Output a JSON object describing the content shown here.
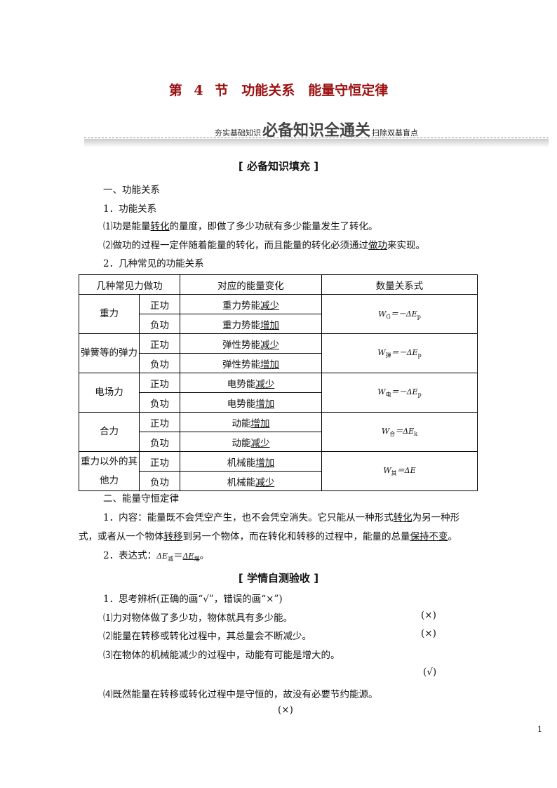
{
  "title": "第 4 节　功能关系　能量守恒定律",
  "banner": {
    "left": "夯实基础知识",
    "main": "必备知识全通关",
    "right": "扫除双基盲点"
  },
  "section1": "[ 必备知识填充 ]",
  "part1": "一、功能关系",
  "p1_head": "1．功能关系",
  "p1_1": [
    "⑴功是能量",
    "转化",
    "的量度，即做了多少功就有多少能量发生了转化。"
  ],
  "p1_2": [
    "⑵做功的过程一定伴随着能量的转化，而且能量的转化必须通过",
    "做功",
    "来实现。"
  ],
  "p2_head": "2．几种常见的功能关系",
  "table": {
    "headers": [
      "几种常见力做功",
      "对应的能量变化",
      "数量关系式"
    ],
    "groups": [
      {
        "force": "重力",
        "rows": [
          {
            "work": "正功",
            "change": [
              "重力势能",
              "减少"
            ]
          },
          {
            "work": "负功",
            "change": [
              "重力势能",
              "增加"
            ]
          }
        ],
        "formula": {
          "w": "W",
          "sub": "G",
          "rhs": "＝－ΔE",
          "rsub": "p"
        }
      },
      {
        "force": "弹簧等的弹力",
        "rows": [
          {
            "work": "正功",
            "change": [
              "弹性势能",
              "减少"
            ]
          },
          {
            "work": "负功",
            "change": [
              "弹性势能",
              "增加"
            ]
          }
        ],
        "formula": {
          "w": "W",
          "sub": "弹",
          "rhs": "＝－ΔE",
          "rsub": "p"
        }
      },
      {
        "force": "电场力",
        "rows": [
          {
            "work": "正功",
            "change": [
              "电势能",
              "减少"
            ]
          },
          {
            "work": "负功",
            "change": [
              "电势能",
              "增加"
            ]
          }
        ],
        "formula": {
          "w": "W",
          "sub": "电",
          "rhs": "＝－ΔE",
          "rsub": "p"
        }
      },
      {
        "force": "合力",
        "rows": [
          {
            "work": "正功",
            "change": [
              "动能",
              "增加"
            ]
          },
          {
            "work": "负功",
            "change": [
              "动能",
              "减少"
            ]
          }
        ],
        "formula": {
          "w": "W",
          "sub": "合",
          "rhs": "＝ΔE",
          "rsub": "k"
        }
      },
      {
        "force": "重力以外的其他力",
        "rows": [
          {
            "work": "正功",
            "change": [
              "机械能",
              "增加"
            ]
          },
          {
            "work": "负功",
            "change": [
              "机械能",
              "减少"
            ]
          }
        ],
        "formula": {
          "w": "W",
          "sub": "其",
          "rhs": "＝ΔE",
          "rsub": ""
        }
      }
    ]
  },
  "part2": "二、能量守恒定律",
  "p3_1": [
    "1．内容：能量既不会凭空产生，也不会凭空消失。它只能从一种形式",
    "转化",
    "为另一种形"
  ],
  "p3_2": [
    "式，或者从一个物体",
    "转移",
    "到另一个物体，而在转化和转移的过程中，能量的总量",
    "保持不变",
    "。"
  ],
  "p3_3": {
    "label": "2．表达式：",
    "lhs": "ΔE",
    "lsub": "减",
    "eq": "＝",
    "rhs": "ΔE",
    "rsub": "增",
    "end": "。"
  },
  "section2": "[ 学情自测验收 ]",
  "q_head": "1．思考辨析(正确的画“√”，错误的画“×”)",
  "questions": [
    {
      "text": "⑴力对物体做了多少功，物体就具有多少能。",
      "answer": "(×)"
    },
    {
      "text": "⑵能量在转移或转化过程中，其总量会不断减少。",
      "answer": "(×)"
    },
    {
      "text": "⑶在物体的机械能减少的过程中，动能有可能是增大的。",
      "answer": "(√)"
    },
    {
      "text": "⑷既然能量在转移或转化过程中是守恒的，故没有必要节约能源。",
      "answer": "(×)"
    }
  ],
  "page_number": "1"
}
